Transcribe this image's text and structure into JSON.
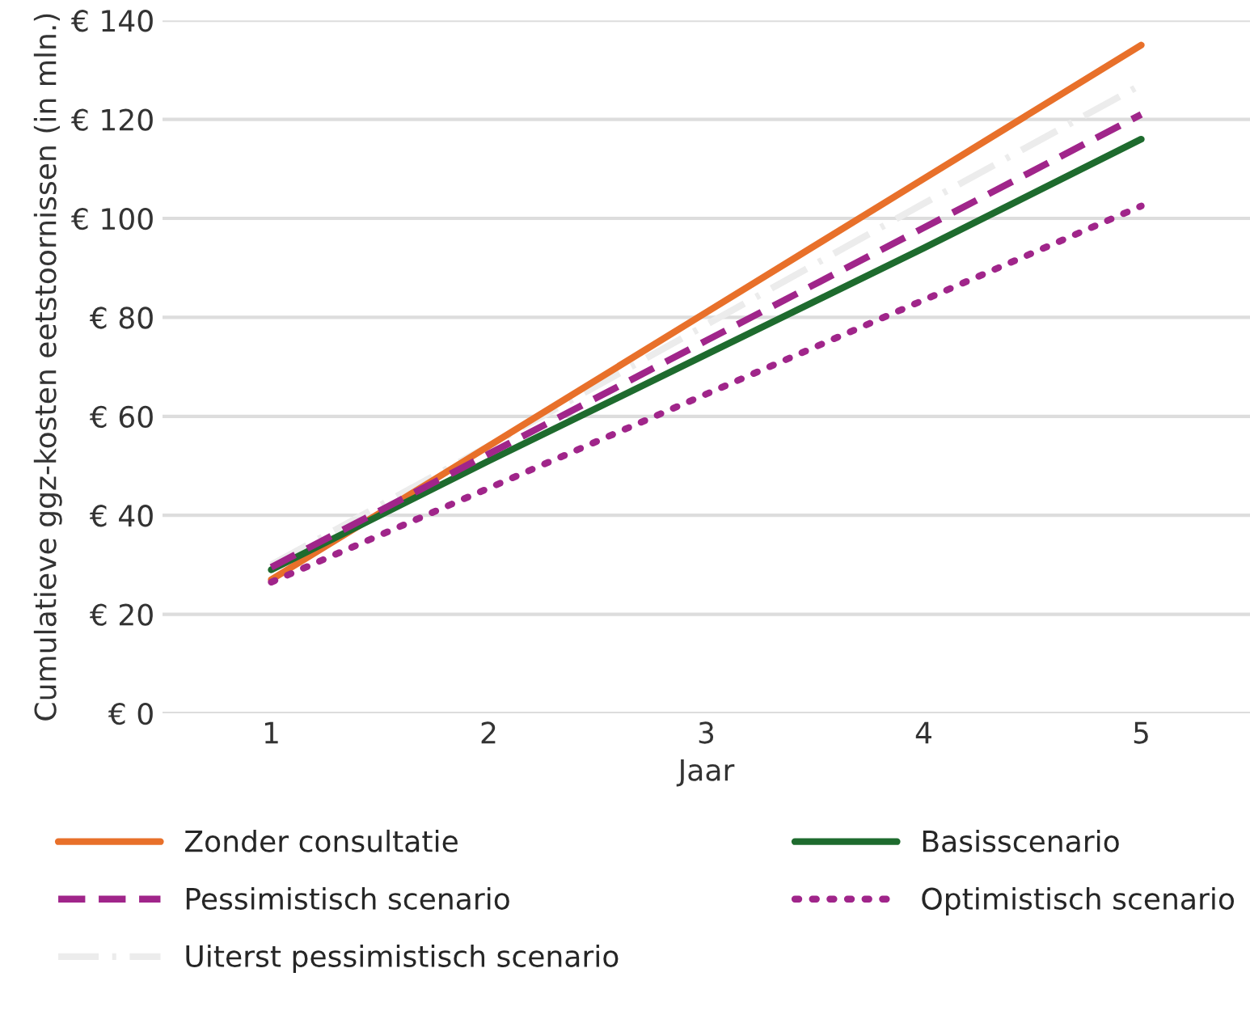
{
  "chart_data": {
    "type": "line",
    "xlabel": "Jaar",
    "ylabel": "Cumulatieve ggz-kosten eetstoornissen (in mln.)",
    "x": [
      1,
      2,
      3,
      4,
      5
    ],
    "xlim": [
      0.5,
      5.5
    ],
    "xticks": [
      1,
      2,
      3,
      4,
      5
    ],
    "ylim": [
      0,
      140
    ],
    "yticks": [
      {
        "value": 0,
        "label": "€ 0"
      },
      {
        "value": 20,
        "label": "€ 20"
      },
      {
        "value": 40,
        "label": "€ 40"
      },
      {
        "value": 60,
        "label": "€ 60"
      },
      {
        "value": 80,
        "label": "€ 80"
      },
      {
        "value": 100,
        "label": "€ 100"
      },
      {
        "value": 120,
        "label": "€ 120"
      },
      {
        "value": 140,
        "label": "€ 140"
      }
    ],
    "grid": "y",
    "legend": "bottom",
    "marker": "none",
    "series": [
      {
        "name": "Zonder consultatie",
        "color": "#e8702a",
        "line_style": "solid",
        "values": [
          27,
          54,
          81,
          108,
          135
        ]
      },
      {
        "name": "Basisscenario",
        "color": "#1e6b2e",
        "line_style": "solid",
        "values": [
          29,
          51,
          72.5,
          94,
          116
        ]
      },
      {
        "name": "Pessimistisch scenario",
        "color": "#a0258a",
        "line_style": "dashed",
        "values": [
          29.5,
          52.4,
          75.3,
          98.1,
          121
        ]
      },
      {
        "name": "Optimistisch scenario",
        "color": "#a0258a",
        "line_style": "dotted",
        "values": [
          26.5,
          45.5,
          64.5,
          83.5,
          102.5
        ]
      },
      {
        "name": "Uiterst pessimistisch scenario",
        "color": "#ececec",
        "line_style": "dashdot",
        "values": [
          30,
          54,
          78.5,
          103,
          127
        ]
      }
    ]
  }
}
